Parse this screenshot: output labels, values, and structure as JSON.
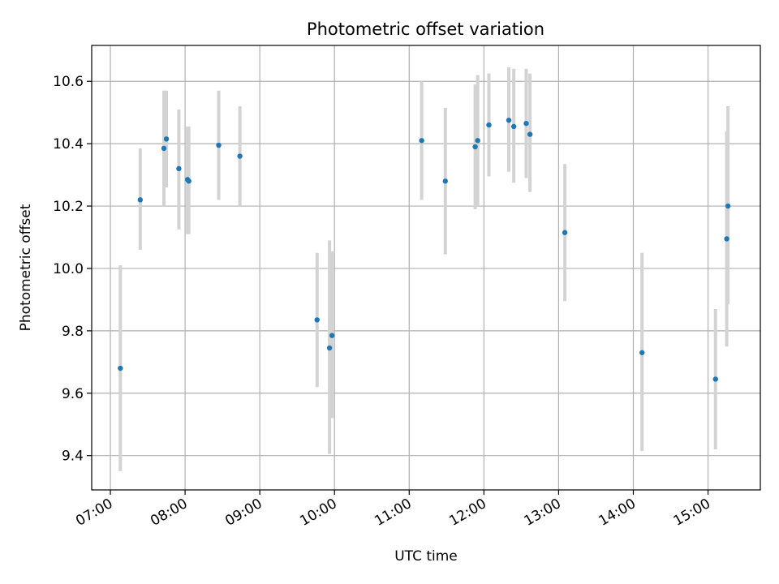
{
  "chart_data": {
    "type": "scatter",
    "title": "Photometric offset variation",
    "xlabel": "UTC time",
    "ylabel": "Photometric offset",
    "x_tick_labels": [
      "07:00",
      "08:00",
      "09:00",
      "10:00",
      "11:00",
      "12:00",
      "13:00",
      "14:00",
      "15:00"
    ],
    "y_tick_labels": [
      "9.4",
      "9.6",
      "9.8",
      "10.0",
      "10.2",
      "10.4",
      "10.6"
    ],
    "xlim": [
      "06:45",
      "15:42"
    ],
    "ylim": [
      9.29,
      10.715
    ],
    "grid": true,
    "x_is_time": true,
    "point_color": "#1f77b4",
    "errorbar_color": "#d3d3d3",
    "points": [
      {
        "x": "07:08",
        "y": 9.68,
        "ylow": 9.35,
        "yhigh": 10.01
      },
      {
        "x": "07:24",
        "y": 10.22,
        "ylow": 10.06,
        "yhigh": 10.385
      },
      {
        "x": "07:43",
        "y": 10.385,
        "ylow": 10.2,
        "yhigh": 10.57
      },
      {
        "x": "07:45",
        "y": 10.415,
        "ylow": 10.26,
        "yhigh": 10.57
      },
      {
        "x": "07:55",
        "y": 10.32,
        "ylow": 10.125,
        "yhigh": 10.51
      },
      {
        "x": "08:02",
        "y": 10.285,
        "ylow": 10.11,
        "yhigh": 10.455
      },
      {
        "x": "08:03",
        "y": 10.28,
        "ylow": 10.11,
        "yhigh": 10.455
      },
      {
        "x": "08:27",
        "y": 10.395,
        "ylow": 10.22,
        "yhigh": 10.57
      },
      {
        "x": "08:44",
        "y": 10.36,
        "ylow": 10.2,
        "yhigh": 10.52
      },
      {
        "x": "09:46",
        "y": 9.835,
        "ylow": 9.62,
        "yhigh": 10.05
      },
      {
        "x": "09:56",
        "y": 9.745,
        "ylow": 9.405,
        "yhigh": 10.09
      },
      {
        "x": "09:58",
        "y": 9.785,
        "ylow": 9.52,
        "yhigh": 10.055
      },
      {
        "x": "11:10",
        "y": 10.41,
        "ylow": 10.22,
        "yhigh": 10.6
      },
      {
        "x": "11:29",
        "y": 10.28,
        "ylow": 10.045,
        "yhigh": 10.515
      },
      {
        "x": "11:53",
        "y": 10.39,
        "ylow": 10.19,
        "yhigh": 10.59
      },
      {
        "x": "11:55",
        "y": 10.41,
        "ylow": 10.2,
        "yhigh": 10.62
      },
      {
        "x": "12:04",
        "y": 10.46,
        "ylow": 10.295,
        "yhigh": 10.625
      },
      {
        "x": "12:20",
        "y": 10.475,
        "ylow": 10.31,
        "yhigh": 10.645
      },
      {
        "x": "12:24",
        "y": 10.455,
        "ylow": 10.275,
        "yhigh": 10.64
      },
      {
        "x": "12:34",
        "y": 10.465,
        "ylow": 10.29,
        "yhigh": 10.64
      },
      {
        "x": "12:37",
        "y": 10.43,
        "ylow": 10.245,
        "yhigh": 10.625
      },
      {
        "x": "13:05",
        "y": 10.115,
        "ylow": 9.895,
        "yhigh": 10.335
      },
      {
        "x": "14:07",
        "y": 9.73,
        "ylow": 9.415,
        "yhigh": 10.05
      },
      {
        "x": "15:06",
        "y": 9.645,
        "ylow": 9.42,
        "yhigh": 9.87
      },
      {
        "x": "15:15",
        "y": 10.095,
        "ylow": 9.75,
        "yhigh": 10.44
      },
      {
        "x": "15:16",
        "y": 10.2,
        "ylow": 9.885,
        "yhigh": 10.52
      }
    ]
  }
}
